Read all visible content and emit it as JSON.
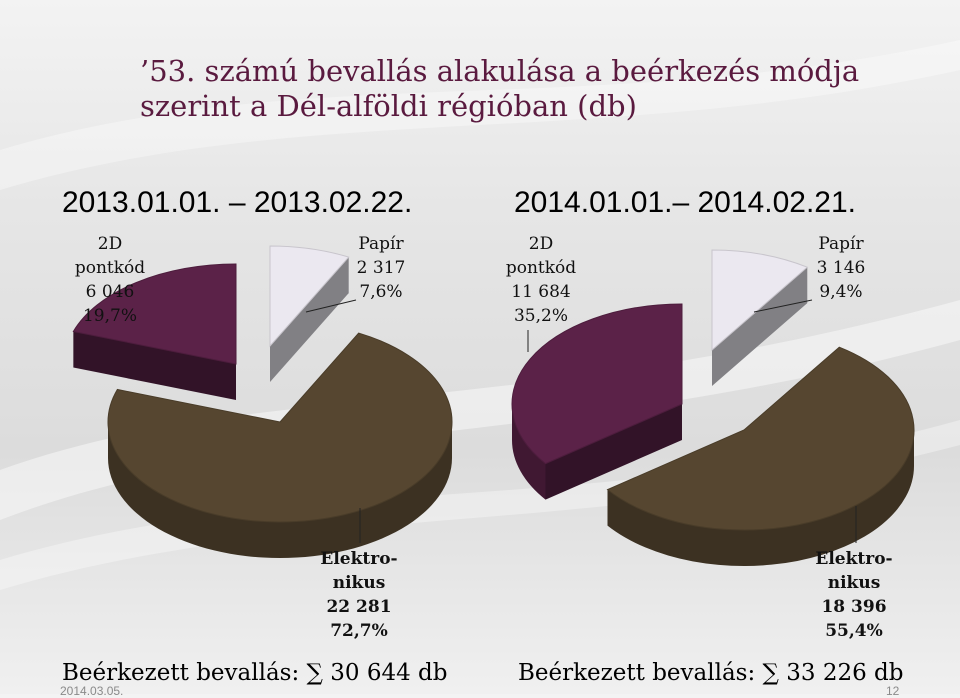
{
  "slide": {
    "title": "’53. számú bevallás alakulása a beérkezés módja szerint a Dél-alföldi régióban (db)",
    "footer_date": "2014.03.05.",
    "page_number": "12"
  },
  "chart_data": [
    {
      "type": "pie",
      "period": "2013.01.01. – 2013.02.22.",
      "total_label": "Beérkezett bevallás: ∑ 30 644 db",
      "slices": [
        {
          "name": "2D pontkód",
          "name_lines": [
            "2D",
            "pontkód"
          ],
          "value_text": "6 046",
          "percent_text": "19,7%",
          "value": 6046,
          "percent": 19.7
        },
        {
          "name": "Papír",
          "name_lines": [
            "Papír"
          ],
          "value_text": "2 317",
          "percent_text": "7,6%",
          "value": 2317,
          "percent": 7.6
        },
        {
          "name": "Elektronikus",
          "name_lines": [
            "Elektro-",
            "nikus"
          ],
          "value_text": "22 281",
          "percent_text": "72,7%",
          "value": 22281,
          "percent": 72.7
        }
      ]
    },
    {
      "type": "pie",
      "period": "2014.01.01.– 2014.02.21.",
      "total_label": "Beérkezett bevallás: ∑ 33 226 db",
      "slices": [
        {
          "name": "2D pontkód",
          "name_lines": [
            "2D",
            "pontkód"
          ],
          "value_text": "11 684",
          "percent_text": "35,2%",
          "value": 11684,
          "percent": 35.2
        },
        {
          "name": "Papír",
          "name_lines": [
            "Papír"
          ],
          "value_text": "3 146",
          "percent_text": "9,4%",
          "value": 3146,
          "percent": 9.4
        },
        {
          "name": "Elektronikus",
          "name_lines": [
            "Elektro-",
            "nikus"
          ],
          "value_text": "18 396",
          "percent_text": "55,4%",
          "value": 18396,
          "percent": 55.4
        }
      ]
    }
  ],
  "colors": {
    "pont2d": "#5b2248",
    "papir": "#ebe8f0",
    "elektronikus": "#564630",
    "title": "#5a1a3f"
  }
}
